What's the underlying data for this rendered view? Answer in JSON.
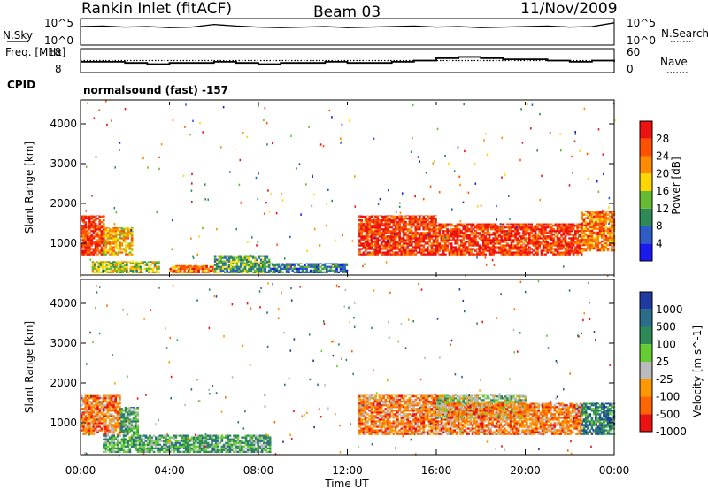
{
  "header": {
    "station": "Rankin Inlet (fitACF)",
    "beam": "Beam 03",
    "date": "11/Nov/2009"
  },
  "chart_data": [
    {
      "type": "line",
      "title": "",
      "left_label": "N.Sky",
      "right_label": "N.Search",
      "left_ticks": [
        "10^5",
        "10^0"
      ],
      "right_ticks": [
        "10^5",
        "10^0"
      ],
      "x_range_hours": [
        0,
        24
      ],
      "series": [
        {
          "name": "N.Sky",
          "style": "solid",
          "x": [
            0,
            1,
            2,
            3,
            4,
            5,
            6,
            7,
            8,
            9,
            10,
            11,
            12,
            13,
            14,
            15,
            16,
            17,
            18,
            19,
            20,
            21,
            22,
            23,
            24
          ],
          "values": [
            3.5,
            3.6,
            3.4,
            3.5,
            3.3,
            3.4,
            3.9,
            3.6,
            3.4,
            3.3,
            3.4,
            3.5,
            3.3,
            3.4,
            3.5,
            3.6,
            3.4,
            3.5,
            3.3,
            3.4,
            3.5,
            3.6,
            3.4,
            3.5,
            4.2
          ]
        }
      ]
    },
    {
      "type": "line",
      "title": "",
      "left_label": "Freq. [MHz]",
      "right_label": "Nave",
      "left_ticks": [
        "18",
        "8"
      ],
      "right_ticks": [
        "60",
        "0"
      ],
      "x_range_hours": [
        0,
        24
      ],
      "series": [
        {
          "name": "Freq",
          "style": "solid",
          "x": [
            0,
            1,
            2,
            3,
            4,
            5,
            6,
            7,
            8,
            9,
            10,
            11,
            12,
            13,
            14,
            15,
            16,
            17,
            18,
            19,
            20,
            21,
            22,
            23,
            24
          ],
          "values": [
            12.5,
            12.5,
            12.0,
            11.5,
            12.0,
            12.0,
            12.5,
            12.0,
            11.5,
            12.0,
            12.0,
            12.5,
            12.0,
            12.0,
            12.5,
            13.0,
            14.0,
            14.5,
            14.0,
            13.5,
            13.5,
            13.0,
            12.5,
            13.0,
            12.5
          ]
        },
        {
          "name": "Nave",
          "style": "dotted",
          "value": 30
        }
      ]
    },
    {
      "type": "heatmap",
      "title": "",
      "cpid_label": "CPID",
      "cpid_text": "normalsound (fast) -157",
      "ylabel": "Slant Range [km]",
      "yticks": [
        "1000",
        "2000",
        "3000",
        "4000"
      ],
      "ylim": [
        200,
        4600
      ],
      "colorbar_label": "Power [dB]",
      "colorbar_ticks": [
        "4",
        "8",
        "12",
        "16",
        "20",
        "24",
        "28"
      ],
      "colorbar_colors": [
        "#1a1aee",
        "#2e5dc8",
        "#2e8b57",
        "#66bb33",
        "#ffd700",
        "#ff8c00",
        "#ff5000",
        "#ee1111"
      ],
      "regions": [
        {
          "t": [
            0.0,
            1.0
          ],
          "r": [
            700,
            1700
          ],
          "level": 7
        },
        {
          "t": [
            1.0,
            2.3
          ],
          "r": [
            700,
            1400
          ],
          "level": 5
        },
        {
          "t": [
            0.5,
            3.5
          ],
          "r": [
            250,
            550
          ],
          "level": 4
        },
        {
          "t": [
            4.0,
            6.0
          ],
          "r": [
            250,
            450
          ],
          "level": 6
        },
        {
          "t": [
            6.0,
            8.5
          ],
          "r": [
            250,
            700
          ],
          "level": 3
        },
        {
          "t": [
            12.5,
            16.0
          ],
          "r": [
            700,
            1700
          ],
          "level": 7
        },
        {
          "t": [
            16.0,
            22.5
          ],
          "r": [
            700,
            1500
          ],
          "level": 7
        },
        {
          "t": [
            22.5,
            24.0
          ],
          "r": [
            800,
            1800
          ],
          "level": 6
        },
        {
          "t": [
            8.5,
            12.0
          ],
          "r": [
            250,
            500
          ],
          "level": 2
        }
      ]
    },
    {
      "type": "heatmap",
      "title": "",
      "ylabel": "Slant Range [km]",
      "yticks": [
        "1000",
        "2000",
        "3000",
        "4000"
      ],
      "ylim": [
        200,
        4600
      ],
      "colorbar_label": "Velocity [m s^-1]",
      "colorbar_ticks": [
        "1000",
        "500",
        "100",
        "25",
        "-25",
        "-100",
        "-500",
        "-1000"
      ],
      "colorbar_colors": [
        "#1f3aa0",
        "#2a6e8a",
        "#2e8b57",
        "#66cc33",
        "#bbbbbb",
        "#ff9900",
        "#ff6600",
        "#ee1111"
      ],
      "xticks": [
        "00:00",
        "04:00",
        "08:00",
        "12:00",
        "16:00",
        "20:00",
        "00:00"
      ],
      "xlabel": "Time UT",
      "regions": [
        {
          "t": [
            0.0,
            1.8
          ],
          "r": [
            700,
            1700
          ],
          "level": 6
        },
        {
          "t": [
            1.8,
            2.6
          ],
          "r": [
            700,
            1400
          ],
          "level": 3
        },
        {
          "t": [
            1.0,
            8.5
          ],
          "r": [
            250,
            700
          ],
          "level": 3
        },
        {
          "t": [
            12.5,
            16.5
          ],
          "r": [
            700,
            1700
          ],
          "level": 6
        },
        {
          "t": [
            16.0,
            20.0
          ],
          "r": [
            1100,
            1700
          ],
          "level": 4
        },
        {
          "t": [
            16.5,
            22.5
          ],
          "r": [
            700,
            1500
          ],
          "level": 6
        },
        {
          "t": [
            22.5,
            24.0
          ],
          "r": [
            700,
            1500
          ],
          "level": 2
        }
      ]
    }
  ]
}
